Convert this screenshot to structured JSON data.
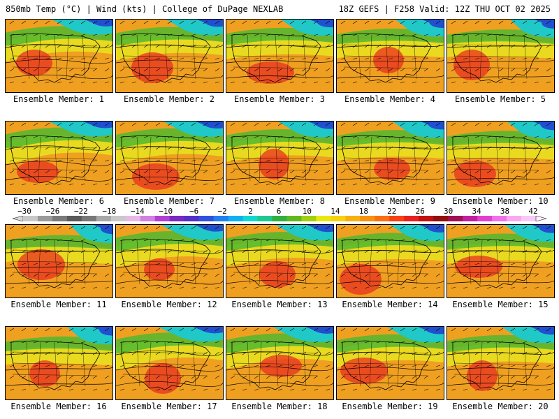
{
  "header": {
    "left_title": "850mb Temp (°C) | Wind (kts) | College of DuPage NEXLAB",
    "right_title": "18Z GEFS | F258 Valid: 12Z THU OCT 02 2025"
  },
  "panels": [
    {
      "label": "Ensemble Member: 1",
      "variant": 1
    },
    {
      "label": "Ensemble Member: 2",
      "variant": 2
    },
    {
      "label": "Ensemble Member: 3",
      "variant": 3
    },
    {
      "label": "Ensemble Member: 4",
      "variant": 4
    },
    {
      "label": "Ensemble Member: 5",
      "variant": 5
    },
    {
      "label": "Ensemble Member: 6",
      "variant": 6
    },
    {
      "label": "Ensemble Member: 7",
      "variant": 7
    },
    {
      "label": "Ensemble Member: 8",
      "variant": 8
    },
    {
      "label": "Ensemble Member: 9",
      "variant": 9
    },
    {
      "label": "Ensemble Member: 10",
      "variant": 10
    },
    {
      "label": "Ensemble Member: 11",
      "variant": 11
    },
    {
      "label": "Ensemble Member: 12",
      "variant": 12
    },
    {
      "label": "Ensemble Member: 13",
      "variant": 13
    },
    {
      "label": "Ensemble Member: 14",
      "variant": 14
    },
    {
      "label": "Ensemble Member: 15",
      "variant": 15
    },
    {
      "label": "Ensemble Member: 16",
      "variant": 16
    },
    {
      "label": "Ensemble Member: 17",
      "variant": 17
    },
    {
      "label": "Ensemble Member: 18",
      "variant": 18
    },
    {
      "label": "Ensemble Member: 19",
      "variant": 19
    },
    {
      "label": "Ensemble Member: 20",
      "variant": 20
    }
  ],
  "colorbar": {
    "ticks": [
      "−30",
      "−26",
      "−22",
      "−18",
      "−14",
      "−10",
      "−6",
      "−2",
      "2",
      "6",
      "10",
      "14",
      "18",
      "22",
      "26",
      "30",
      "34",
      "38",
      "42"
    ],
    "colors": [
      "#c8c8c8",
      "#9a9a9a",
      "#7a7a7a",
      "#5a5a5a",
      "#787878",
      "#a8a8a8",
      "#c8c8c8",
      "#e8b8e8",
      "#d080e0",
      "#b040d0",
      "#7a28c0",
      "#5030c8",
      "#3050e0",
      "#2080f0",
      "#10b0f0",
      "#10d8d0",
      "#20c890",
      "#30b040",
      "#60b820",
      "#a0d010",
      "#e8e810",
      "#f8d010",
      "#f8b010",
      "#f89010",
      "#f87010",
      "#f84010",
      "#e82020",
      "#c01010",
      "#901010",
      "#a01050",
      "#c020a0",
      "#e040d0",
      "#f070e8",
      "#f8a8f0",
      "#f8c8f8"
    ]
  },
  "map_colors": {
    "warm": "#f0a020",
    "hot": "#e83020",
    "yellow": "#e8e020",
    "green": "#50b830",
    "cyan": "#20c8c8",
    "blue": "#2050d0"
  }
}
